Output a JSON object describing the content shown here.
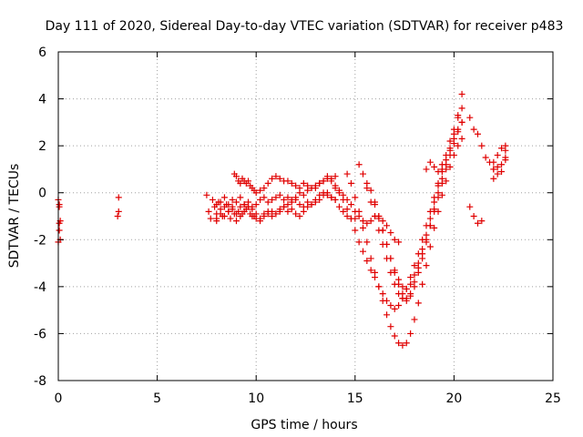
{
  "chart_data": {
    "type": "scatter",
    "title": "Day 111 of 2020, Sidereal Day-to-day VTEC variation (SDTVAR) for receiver p483",
    "xlabel": "GPS time / hours",
    "ylabel": "SDTVAR / TECUs",
    "xlim": [
      0,
      25
    ],
    "ylim": [
      -8,
      6
    ],
    "x_ticks": [
      0,
      5,
      10,
      15,
      20,
      25
    ],
    "y_ticks": [
      -8,
      -6,
      -4,
      -2,
      0,
      2,
      4,
      6
    ],
    "x_tick_labels": [
      "0",
      "5",
      "10",
      "15",
      "20",
      "25"
    ],
    "y_tick_labels": [
      "-8",
      "-6",
      "-4",
      "-2",
      "0",
      "2",
      "4",
      "6"
    ],
    "grid": true,
    "legend": "none",
    "marker": "+",
    "color": "#e00000",
    "series": [
      {
        "name": "SDTVAR",
        "x": [
          0.0,
          0.05,
          0.1,
          0.05,
          0.0,
          0.1,
          0.05,
          0.05,
          3.05,
          3.0,
          3.05,
          7.5,
          7.6,
          7.7,
          7.8,
          7.9,
          8.0,
          8.0,
          8.1,
          8.2,
          8.3,
          8.4,
          8.5,
          8.6,
          8.7,
          8.8,
          8.9,
          9.0,
          9.1,
          9.2,
          9.3,
          9.4,
          9.5,
          9.6,
          9.7,
          9.8,
          9.9,
          10.0,
          10.2,
          10.4,
          10.6,
          10.8,
          11.0,
          11.2,
          11.4,
          11.6,
          11.8,
          12.0,
          12.2,
          12.4,
          12.6,
          12.8,
          13.0,
          13.2,
          13.4,
          13.6,
          13.8,
          14.0,
          14.2,
          14.4,
          14.6,
          14.8,
          15.0,
          8.9,
          9.0,
          9.1,
          9.2,
          9.3,
          9.4,
          9.5,
          9.6,
          9.7,
          9.8,
          9.9,
          10.0,
          10.2,
          10.4,
          10.6,
          10.8,
          11.0,
          11.2,
          11.4,
          11.6,
          11.8,
          12.0,
          12.2,
          12.4,
          12.6,
          12.8,
          13.0,
          13.2,
          13.4,
          13.6,
          13.8,
          14.0,
          8.0,
          8.2,
          8.4,
          8.6,
          8.8,
          9.0,
          9.2,
          9.4,
          9.6,
          9.8,
          10.0,
          10.2,
          10.4,
          10.6,
          10.8,
          11.0,
          11.2,
          11.4,
          11.6,
          11.8,
          12.0,
          12.2,
          12.4,
          12.6,
          12.8,
          13.0,
          13.2,
          13.4,
          13.6,
          13.8,
          14.0,
          14.2,
          14.4,
          14.6,
          14.8,
          15.0,
          15.2,
          15.4,
          15.6,
          15.8,
          16.0,
          16.2,
          16.4,
          16.6,
          16.8,
          17.0,
          17.2,
          8.0,
          8.2,
          8.4,
          8.6,
          8.8,
          9.0,
          9.2,
          9.4,
          9.6,
          9.8,
          10.0,
          10.2,
          10.4,
          10.6,
          10.8,
          11.0,
          11.2,
          11.4,
          11.6,
          11.8,
          12.0,
          12.2,
          12.4,
          12.6,
          12.8,
          13.0,
          13.2,
          13.4,
          13.6,
          13.8,
          14.0,
          14.0,
          14.2,
          14.4,
          14.6,
          14.8,
          15.0,
          15.2,
          15.4,
          15.6,
          15.8,
          16.0,
          16.2,
          16.4,
          16.6,
          16.8,
          17.0,
          17.2,
          17.4,
          17.6,
          17.8,
          18.0,
          18.2,
          18.4,
          18.6,
          18.8,
          19.0,
          19.2,
          19.4,
          19.6,
          19.8,
          20.0,
          20.2,
          20.4,
          14.6,
          14.8,
          15.0,
          15.2,
          15.4,
          15.6,
          15.8,
          16.0,
          16.2,
          16.4,
          16.6,
          16.8,
          17.0,
          17.2,
          17.4,
          17.6,
          17.8,
          18.0,
          18.2,
          18.4,
          18.6,
          18.8,
          19.0,
          19.2,
          19.4,
          19.6,
          19.8,
          20.0,
          20.2,
          20.4,
          15.2,
          15.4,
          15.6,
          15.8,
          16.0,
          16.2,
          16.4,
          16.6,
          16.8,
          17.0,
          17.2,
          17.4,
          17.6,
          17.8,
          18.0,
          18.2,
          18.4,
          18.6,
          18.8,
          19.0,
          19.2,
          19.4,
          19.6,
          19.8,
          20.0,
          20.2,
          20.4,
          15.6,
          15.8,
          16.0,
          16.2,
          16.4,
          16.6,
          16.8,
          17.0,
          17.2,
          17.4,
          17.6,
          17.8,
          18.0,
          18.2,
          18.4,
          18.6,
          18.8,
          19.0,
          19.2,
          19.4,
          19.6,
          19.8,
          20.0,
          20.2,
          20.4,
          16.0,
          16.2,
          16.4,
          16.6,
          16.8,
          17.0,
          17.2,
          17.4,
          17.6,
          17.8,
          18.0,
          18.2,
          18.4,
          18.6,
          18.8,
          19.0,
          19.2,
          19.4,
          19.6,
          19.8,
          20.0,
          20.2,
          20.4,
          18.6,
          18.8,
          19.0,
          19.2,
          19.4,
          20.8,
          21.0,
          21.2,
          21.4,
          21.6,
          21.8,
          22.0,
          20.8,
          21.0,
          21.2,
          21.4,
          22.0,
          22.2,
          22.4,
          22.6,
          22.0,
          22.2,
          22.4,
          22.6,
          22.0,
          22.2,
          22.4,
          22.6,
          22.6
        ],
        "y": [
          -0.3,
          -0.5,
          -1.2,
          -1.6,
          -2.1,
          -2.0,
          -0.6,
          -1.3,
          -0.2,
          -1.0,
          -0.8,
          -0.1,
          -0.8,
          -1.1,
          -0.3,
          -0.6,
          -0.9,
          -1.2,
          -0.4,
          -0.7,
          -1.0,
          -0.2,
          -0.5,
          -0.8,
          -1.1,
          -0.6,
          -0.9,
          -1.2,
          -0.8,
          -0.6,
          -0.9,
          -0.5,
          -0.7,
          -0.6,
          -0.9,
          -1.0,
          -1.0,
          -1.1,
          -1.2,
          -1.0,
          -0.9,
          -0.8,
          -0.9,
          -0.8,
          -0.6,
          -0.5,
          -0.3,
          -0.2,
          0.0,
          -0.1,
          0.1,
          0.2,
          0.2,
          0.4,
          0.5,
          0.7,
          0.5,
          0.2,
          0.0,
          -0.1,
          -0.3,
          -0.5,
          -0.8,
          0.8,
          0.7,
          0.5,
          0.4,
          0.6,
          0.5,
          0.4,
          0.5,
          0.3,
          0.2,
          0.1,
          0.0,
          0.1,
          0.2,
          0.4,
          0.6,
          0.7,
          0.6,
          0.5,
          0.5,
          0.4,
          0.3,
          0.2,
          0.4,
          0.3,
          0.2,
          0.3,
          0.4,
          0.5,
          0.6,
          0.6,
          0.7,
          -0.5,
          -0.4,
          -0.6,
          -0.5,
          -0.3,
          -0.4,
          -0.2,
          -0.5,
          -0.4,
          -0.6,
          -0.5,
          -0.3,
          -0.2,
          -0.4,
          -0.3,
          -0.2,
          -0.1,
          -0.3,
          -0.2,
          -0.4,
          -0.3,
          -0.5,
          -0.6,
          -0.4,
          -0.5,
          -0.3,
          -0.1,
          0.0,
          -0.1,
          -0.2,
          -0.3,
          -0.6,
          -0.8,
          -1.0,
          -1.1,
          -1.1,
          -1.0,
          -1.2,
          -1.3,
          -1.2,
          -1.0,
          -1.1,
          -1.2,
          -1.4,
          -1.7,
          -2.0,
          -2.1,
          -1.1,
          -0.9,
          -1.0,
          -0.8,
          -0.7,
          -0.9,
          -1.0,
          -0.8,
          -0.6,
          -0.7,
          -0.9,
          -1.1,
          -0.9,
          -0.8,
          -1.0,
          -0.9,
          -0.7,
          -0.6,
          -0.8,
          -0.7,
          -0.9,
          -1.0,
          -0.8,
          -0.6,
          -0.5,
          -0.4,
          -0.3,
          -0.1,
          0.0,
          -0.2,
          -0.3,
          0.3,
          0.1,
          -0.3,
          -0.7,
          -1.1,
          -1.6,
          -2.1,
          -2.5,
          -2.9,
          -3.3,
          -3.6,
          -4.0,
          -4.3,
          -4.6,
          -4.8,
          -4.95,
          -4.8,
          -4.5,
          -4.1,
          -3.6,
          -3.1,
          -2.6,
          -2.0,
          -1.4,
          -0.8,
          -0.2,
          0.4,
          0.9,
          1.4,
          1.9,
          2.3,
          2.7,
          3.0,
          0.8,
          0.4,
          -0.2,
          -0.8,
          -1.5,
          -2.1,
          -2.8,
          -3.4,
          -4.0,
          -4.6,
          -5.2,
          -5.7,
          -6.1,
          -6.4,
          -6.5,
          -6.4,
          -6.0,
          -5.4,
          -4.7,
          -3.9,
          -3.1,
          -2.3,
          -1.5,
          -0.8,
          -0.1,
          0.5,
          1.1,
          1.6,
          2.0,
          2.3,
          1.2,
          0.8,
          0.2,
          -0.4,
          -1.0,
          -1.6,
          -2.2,
          -2.8,
          -3.4,
          -3.9,
          -4.3,
          -4.5,
          -4.6,
          -4.4,
          -4.0,
          -3.4,
          -2.8,
          -2.1,
          -1.4,
          -0.7,
          0.0,
          0.6,
          1.2,
          1.8,
          2.5,
          3.3,
          4.2,
          0.4,
          0.1,
          -0.4,
          -1.0,
          -1.6,
          -2.2,
          -2.8,
          -3.3,
          -3.7,
          -4.0,
          -4.1,
          -3.9,
          -3.5,
          -3.0,
          -2.4,
          -1.8,
          -1.1,
          -0.4,
          0.3,
          1.0,
          1.6,
          2.2,
          2.7,
          3.2,
          3.6,
          -0.5,
          -1.0,
          -1.6,
          -2.2,
          -2.8,
          -3.4,
          -3.9,
          -4.3,
          -4.5,
          -4.3,
          -3.8,
          -3.2,
          -2.6,
          -2.0,
          -1.4,
          -0.8,
          -0.2,
          0.4,
          1.0,
          1.6,
          2.1,
          2.6,
          3.0,
          1.0,
          1.3,
          1.1,
          0.9,
          1.2,
          3.2,
          2.7,
          2.5,
          2.0,
          1.5,
          1.3,
          1.0,
          -0.6,
          -1.0,
          -1.3,
          -1.2,
          1.3,
          1.6,
          1.9,
          2.0,
          0.6,
          0.8,
          1.2,
          1.5,
          1.0,
          1.1,
          0.9,
          1.4,
          1.8
        ]
      }
    ]
  }
}
